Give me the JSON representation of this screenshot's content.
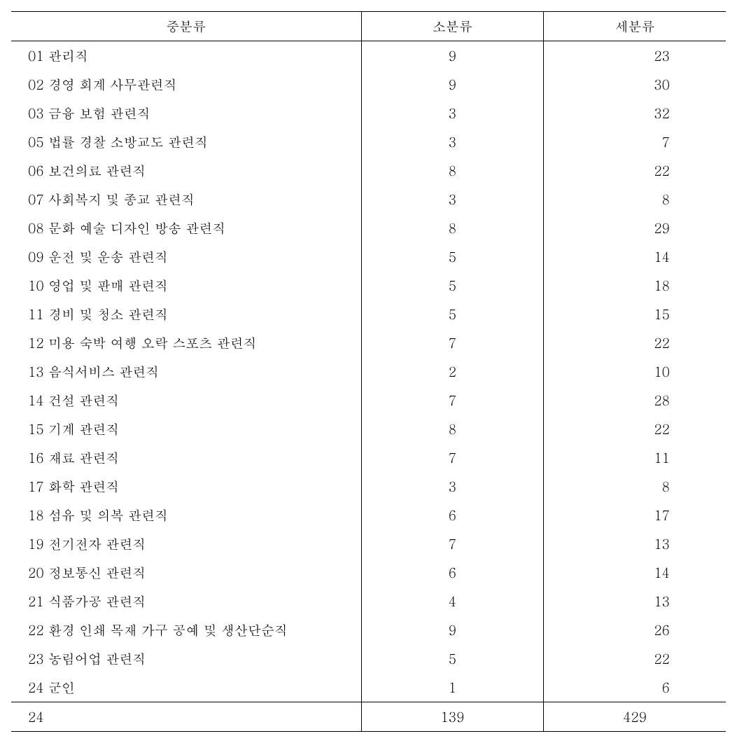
{
  "table": {
    "type": "table",
    "background_color": "#ffffff",
    "text_color": "#000000",
    "border_color": "#000000",
    "font_family": "Batang, serif",
    "font_size_pt": 14,
    "columns": [
      {
        "key": "mid_category",
        "label": "중분류",
        "width_pct": 49,
        "align": "left"
      },
      {
        "key": "sub_category",
        "label": "소분류",
        "width_pct": 25.5,
        "align": "center"
      },
      {
        "key": "detail_category",
        "label": "세분류",
        "width_pct": 25.5,
        "align": "right"
      }
    ],
    "rows": [
      {
        "label": "01 관리직",
        "sub": "9",
        "detail": "23"
      },
      {
        "label": "02 경영 회계 사무관련직",
        "sub": "9",
        "detail": "30"
      },
      {
        "label": "03 금융 보험 관련직",
        "sub": "3",
        "detail": "32"
      },
      {
        "label": "05 법률 경찰 소방교도 관련직",
        "sub": "3",
        "detail": "7"
      },
      {
        "label": "06 보건의료 관련직",
        "sub": "8",
        "detail": "22"
      },
      {
        "label": "07 사회복지 및 종교 관련직",
        "sub": "3",
        "detail": "8"
      },
      {
        "label": "08 문화 예술 디자인 방송 관련직",
        "sub": "8",
        "detail": "29"
      },
      {
        "label": "09 운전 및 운송 관련직",
        "sub": "5",
        "detail": "14"
      },
      {
        "label": "10 영업 및 판매 관련직",
        "sub": "5",
        "detail": "18"
      },
      {
        "label": "11 경비 및 청소 관련직",
        "sub": "5",
        "detail": "15"
      },
      {
        "label": "12 미용 숙박 여행 오락 스포츠 관련직",
        "sub": "7",
        "detail": "22"
      },
      {
        "label": "13 음식서비스 관련직",
        "sub": "2",
        "detail": "10"
      },
      {
        "label": "14 건설 관련직",
        "sub": "7",
        "detail": "28"
      },
      {
        "label": "15 기계 관련직",
        "sub": "8",
        "detail": "22"
      },
      {
        "label": "16 재료 관련직",
        "sub": "7",
        "detail": "11"
      },
      {
        "label": "17 화학 관련직",
        "sub": "3",
        "detail": "8"
      },
      {
        "label": "18 섬유 및 의복 관련직",
        "sub": "6",
        "detail": "17"
      },
      {
        "label": "19 전기전자 관련직",
        "sub": "7",
        "detail": "13"
      },
      {
        "label": "20 정보통신 관련직",
        "sub": "6",
        "detail": "14"
      },
      {
        "label": "21 식품가공 관련직",
        "sub": "4",
        "detail": "13"
      },
      {
        "label": "22 환경 인쇄 목재 가구 공예 및 생산단순직",
        "sub": "9",
        "detail": "26"
      },
      {
        "label": "23 농림어업 관련직",
        "sub": "5",
        "detail": "22"
      },
      {
        "label": "24 군인",
        "sub": "1",
        "detail": "6"
      }
    ],
    "totals": {
      "label": "24",
      "sub": "139",
      "detail": "429"
    }
  }
}
